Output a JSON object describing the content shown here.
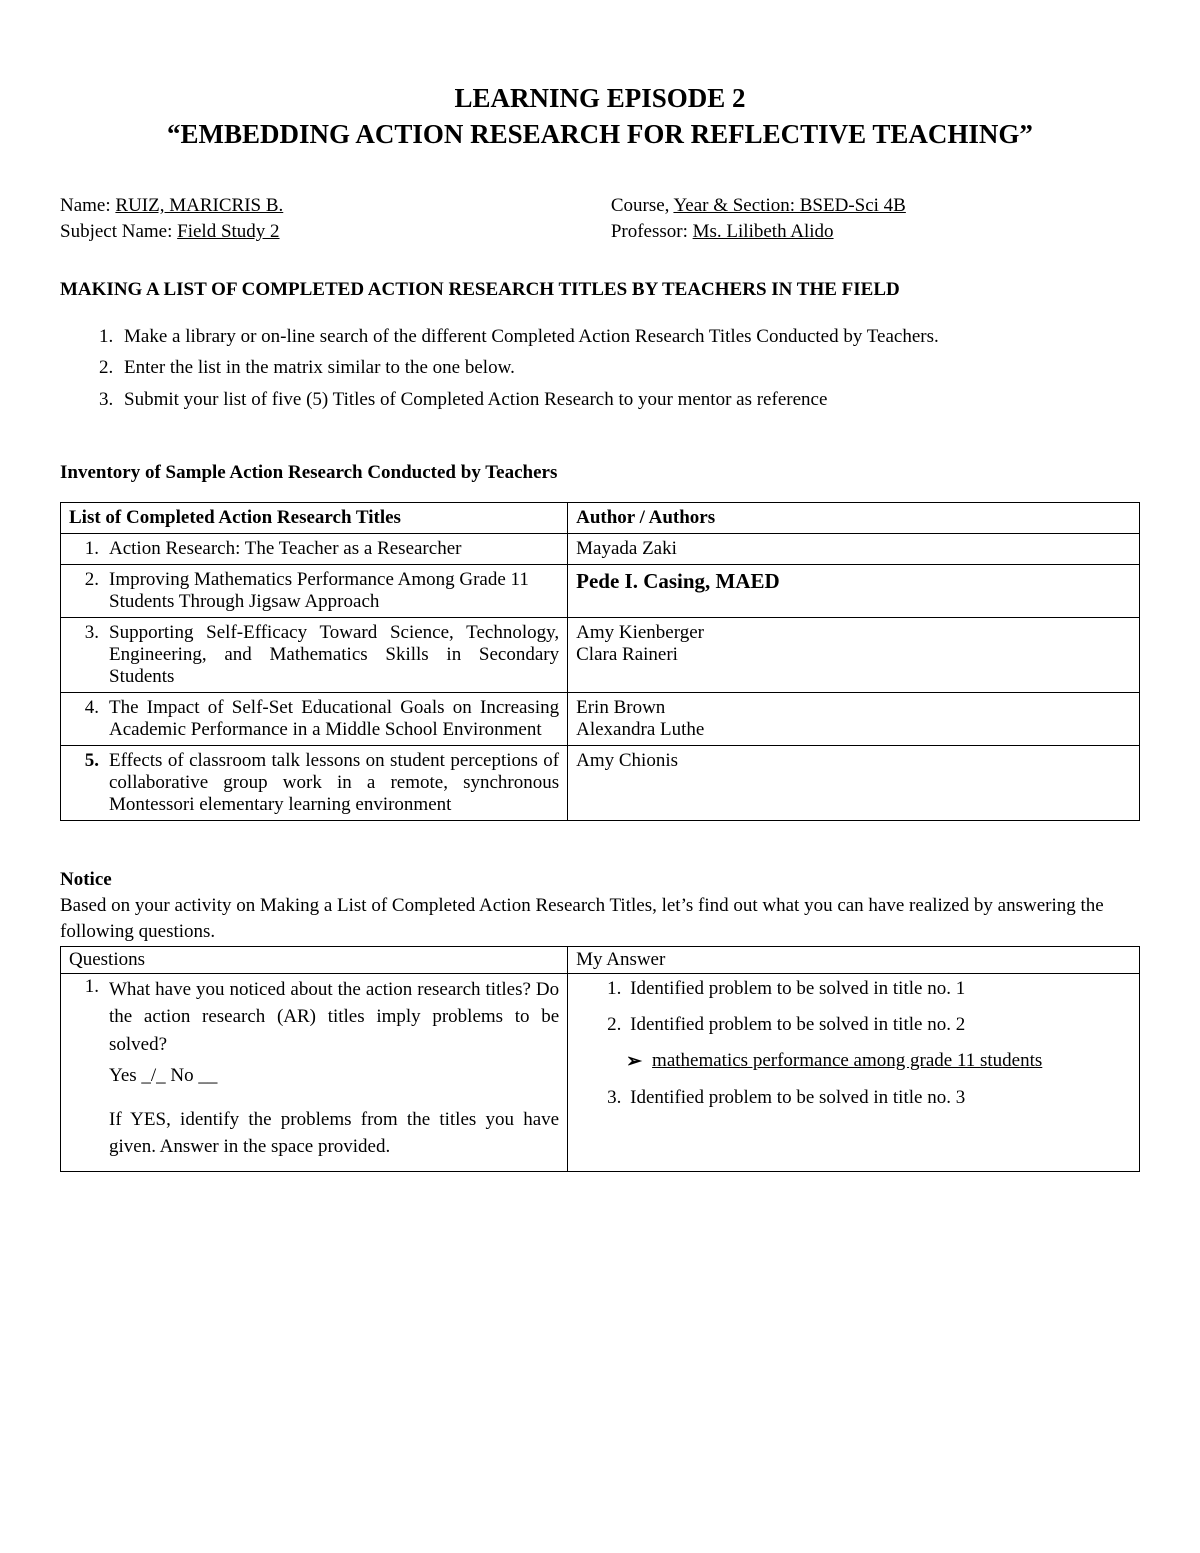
{
  "title": {
    "line1": "LEARNING EPISODE 2",
    "line2": "“EMBEDDING ACTION RESEARCH FOR REFLECTIVE TEACHING”"
  },
  "info": {
    "name_label": "Name: ",
    "name_value": "RUIZ, MARICRIS B.",
    "subject_label": "Subject Name: ",
    "subject_value": "Field Study 2",
    "course_label": "Course, ",
    "course_label2": "Year & Section: BSED-Sci 4B",
    "prof_label": "Professor: ",
    "prof_value": "Ms. Lilibeth Alido"
  },
  "section_heading": "MAKING A LIST OF COMPLETED ACTION RESEARCH TITLES BY TEACHERS IN THE FIELD",
  "instructions": [
    "Make a library or on-line search of the different Completed Action Research Titles Conducted by Teachers.",
    "Enter the list in the matrix similar to the one below.",
    "Submit your list of five (5) Titles of Completed Action Research to your mentor as reference"
  ],
  "inventory_heading": "Inventory of Sample Action Research Conducted by Teachers",
  "table_headers": {
    "titles": "List of Completed Action Research Titles",
    "authors": "Author / Authors"
  },
  "rows": [
    {
      "num": "1.",
      "title": "Action Research: The Teacher as a Researcher",
      "authors": [
        "Mayada Zaki"
      ],
      "num_bold": false,
      "author_bold": false,
      "pad": true,
      "justify": false
    },
    {
      "num": "2.",
      "title": "Improving Mathematics Performance Among Grade 11 Students Through Jigsaw Approach",
      "authors": [
        "Pede I. Casing, MAED"
      ],
      "num_bold": false,
      "author_bold": true,
      "pad": true,
      "justify": false
    },
    {
      "num": "3.",
      "title": "Supporting Self-Efficacy Toward Science, Technology, Engineering, and Mathematics Skills in Secondary Students",
      "authors": [
        "Amy Kienberger",
        "Clara Raineri"
      ],
      "num_bold": false,
      "author_bold": false,
      "pad": false,
      "justify": true
    },
    {
      "num": "4.",
      "title": "The Impact of Self-Set Educational Goals on Increasing Academic Performance in a Middle School Environment",
      "authors": [
        "Erin Brown",
        "Alexandra Luthe"
      ],
      "num_bold": false,
      "author_bold": false,
      "pad": true,
      "justify": true
    },
    {
      "num": "5.",
      "title": "Effects of classroom talk lessons on student perceptions of collaborative group work in a remote, synchronous Montessori elementary learning environment",
      "authors": [
        "Amy Chionis"
      ],
      "num_bold": true,
      "author_bold": false,
      "pad": false,
      "justify": true
    }
  ],
  "notice": {
    "heading": "Notice",
    "text": "Based on your activity on Making a List of Completed Action Research Titles, let’s find out what you can have realized by answering the following questions."
  },
  "qa_headers": {
    "q": "Questions",
    "a": "My Answer"
  },
  "question": {
    "num": "1.",
    "p1": "What have you noticed about the action research titles? Do the action research (AR) titles imply problems to be solved?",
    "yesno": "Yes _/_ No __",
    "p2": "If YES, identify the problems from the titles you have given. Answer in the space provided."
  },
  "answers": {
    "item1": "Identified problem to be solved in title no. 1",
    "item2": "Identified problem to be solved in title no. 2",
    "sub": "mathematics performance among grade 11 students",
    "item3": "Identified problem to be solved in title no. 3"
  }
}
